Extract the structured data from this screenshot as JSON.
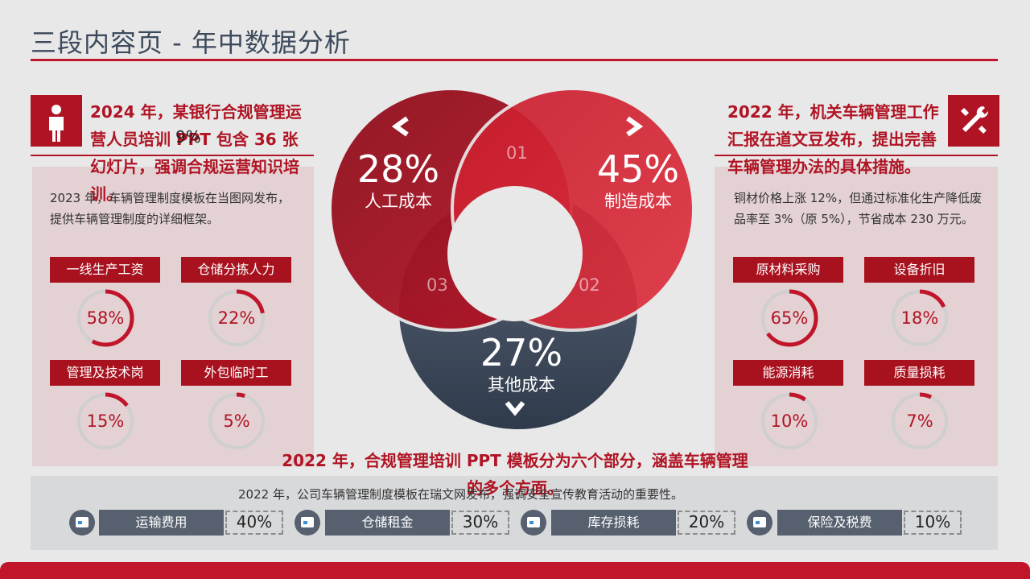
{
  "page": {
    "title": "三段内容页 - 年中数据分析"
  },
  "left": {
    "icon": "person-icon",
    "headline": "2024 年，某银行合规管理运营人员培训 PPT 包含 36 张幻灯片，强调合规运营知识培训。",
    "overlay_pct": "9%",
    "desc": "2023 年，车辆管理制度模板在当图网发布，提供车辆管理制度的详细框架。",
    "items": [
      {
        "label": "一线生产工资",
        "value": "58%",
        "fraction": 0.58
      },
      {
        "label": "仓储分拣人力",
        "value": "22%",
        "fraction": 0.22
      },
      {
        "label": "管理及技术岗",
        "value": "15%",
        "fraction": 0.15
      },
      {
        "label": "外包临时工",
        "value": "5%",
        "fraction": 0.05
      }
    ]
  },
  "right": {
    "icon": "tools-icon",
    "headline": "2022 年，机关车辆管理工作汇报在道文豆发布，提出完善车辆管理办法的具体措施。",
    "desc": "铜材价格上涨 12%，但通过标准化生产降低废品率至 3%（原 5%），节省成本 230 万元。",
    "items": [
      {
        "label": "原材料采购",
        "value": "65%",
        "fraction": 0.65
      },
      {
        "label": "设备折旧",
        "value": "18%",
        "fraction": 0.18
      },
      {
        "label": "能源消耗",
        "value": "10%",
        "fraction": 0.1
      },
      {
        "label": "质量损耗",
        "value": "7%",
        "fraction": 0.07
      }
    ]
  },
  "venn": {
    "left": {
      "pct": "28%",
      "name": "人工成本",
      "num": "01"
    },
    "right": {
      "pct": "45%",
      "name": "制造成本",
      "num": "02"
    },
    "bottom": {
      "pct": "27%",
      "name": "其他成本",
      "num": "03"
    },
    "arrows": [
      "chevron-left-icon",
      "chevron-right-icon",
      "chevron-down-icon"
    ],
    "colors": {
      "left": "#a8121f",
      "right": "#c8202e",
      "bottom": "#3d4a5c"
    }
  },
  "bottom": {
    "headline": "2022 年，合规管理培训 PPT 模板分为六个部分，涵盖车辆管理的多个方面。",
    "desc": "2022 年，公司车辆管理制度模板在瑞文网发布，强调安全宣传教育活动的重要性。",
    "items": [
      {
        "label": "运输费用",
        "value": "40%"
      },
      {
        "label": "仓储租金",
        "value": "30%"
      },
      {
        "label": "库存损耗",
        "value": "20%"
      },
      {
        "label": "保险及税费",
        "value": "10%"
      }
    ]
  },
  "colors": {
    "accent": "#c0152a",
    "dark": "#3d4a5c",
    "panel": "#e3d1d3"
  }
}
